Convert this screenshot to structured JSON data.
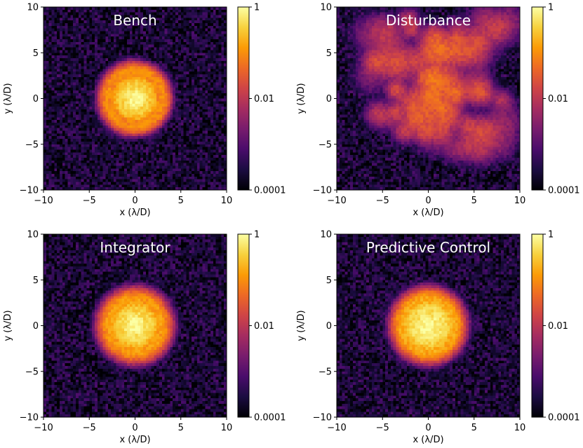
{
  "figure": {
    "colorbar_ticks": [
      "1",
      "0.01",
      "0.0001"
    ],
    "xlabel": "x (λ/D)",
    "ylabel": "y (λ/D)"
  },
  "colormap": {
    "name": "inferno",
    "stops": [
      "#000004",
      "#1b0c41",
      "#4a0c6b",
      "#781c6d",
      "#a52c60",
      "#cf4446",
      "#ed6925",
      "#fb9b06",
      "#f7d13d",
      "#fcffa4"
    ]
  },
  "chart_data": [
    {
      "type": "heatmap",
      "title": "Bench",
      "xlabel": "x (λ/D)",
      "ylabel": "y (λ/D)",
      "xlim": [
        -10,
        10
      ],
      "ylim": [
        -10,
        10
      ],
      "xticks": [
        -10,
        -5,
        0,
        5,
        10
      ],
      "yticks": [
        -10,
        -5,
        0,
        5,
        10
      ],
      "color_scale": "log",
      "color_range": [
        0.0001,
        1
      ],
      "colorbar_ticks": [
        1,
        0.01,
        0.0001
      ],
      "colorbar_tick_labels": [
        "1",
        "0.01",
        "0.0001"
      ],
      "peak_intensity": 1,
      "peak_position": [
        0,
        0
      ],
      "background_level": 0.0004
    },
    {
      "type": "heatmap",
      "title": "Disturbance",
      "xlabel": "x (λ/D)",
      "ylabel": "y (λ/D)",
      "xlim": [
        -10,
        10
      ],
      "ylim": [
        -10,
        10
      ],
      "xticks": [
        -10,
        -5,
        0,
        5,
        10
      ],
      "yticks": [
        -10,
        -5,
        0,
        5,
        10
      ],
      "color_scale": "log",
      "color_range": [
        0.0001,
        1
      ],
      "colorbar_ticks": [
        1,
        0.01,
        0.0001
      ],
      "colorbar_tick_labels": [
        "1",
        "0.01",
        "0.0001"
      ],
      "peak_intensity": 0.05,
      "background_level": 0.0004
    },
    {
      "type": "heatmap",
      "title": "Integrator",
      "xlabel": "x (λ/D)",
      "ylabel": "y (λ/D)",
      "xlim": [
        -10,
        10
      ],
      "ylim": [
        -10,
        10
      ],
      "xticks": [
        -10,
        -5,
        0,
        5,
        10
      ],
      "yticks": [
        -10,
        -5,
        0,
        5,
        10
      ],
      "color_scale": "log",
      "color_range": [
        0.0001,
        1
      ],
      "colorbar_ticks": [
        1,
        0.01,
        0.0001
      ],
      "colorbar_tick_labels": [
        "1",
        "0.01",
        "0.0001"
      ],
      "peak_intensity": 1,
      "peak_position": [
        0,
        0
      ],
      "background_level": 0.0004
    },
    {
      "type": "heatmap",
      "title": "Predictive Control",
      "xlabel": "x (λ/D)",
      "ylabel": "y (λ/D)",
      "xlim": [
        -10,
        10
      ],
      "ylim": [
        -10,
        10
      ],
      "xticks": [
        -10,
        -5,
        0,
        5,
        10
      ],
      "yticks": [
        -10,
        -5,
        0,
        5,
        10
      ],
      "color_scale": "log",
      "color_range": [
        0.0001,
        1
      ],
      "colorbar_ticks": [
        1,
        0.01,
        0.0001
      ],
      "colorbar_tick_labels": [
        "1",
        "0.01",
        "0.0001"
      ],
      "peak_intensity": 1,
      "peak_position": [
        0,
        0
      ],
      "background_level": 0.0004
    }
  ]
}
